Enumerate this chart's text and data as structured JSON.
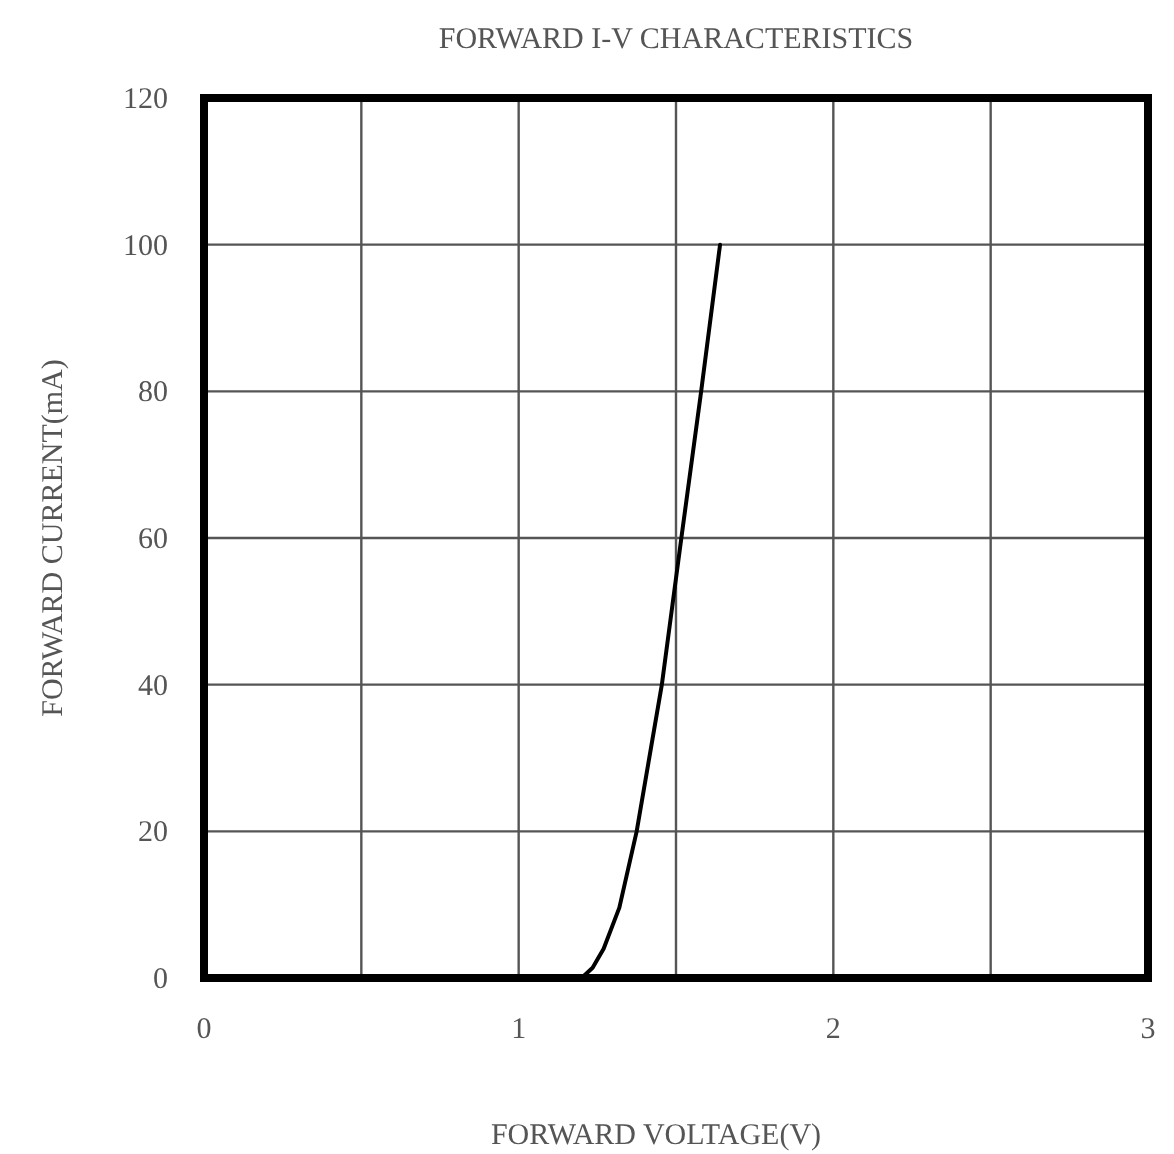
{
  "chart_data": {
    "type": "line",
    "title": "FORWARD I-V CHARACTERISTICS",
    "xlabel": "FORWARD VOLTAGE(V)",
    "ylabel": "FORWARD CURRENT(mA)",
    "series": [
      {
        "color": "#000000",
        "x": [
          1.2,
          1.235,
          1.27,
          1.32,
          1.375,
          1.455,
          1.517,
          1.58,
          1.64
        ],
        "values": [
          0,
          1.4,
          4,
          9.6,
          20,
          40,
          60,
          80,
          100
        ]
      }
    ],
    "xlim": [
      0,
      3
    ],
    "xticks": [
      0,
      1,
      2,
      3
    ],
    "ylim": [
      0,
      120
    ],
    "yticks": [
      0,
      20,
      40,
      60,
      80,
      100,
      120
    ],
    "grid": true,
    "marker": "none",
    "line_style": "solid"
  }
}
